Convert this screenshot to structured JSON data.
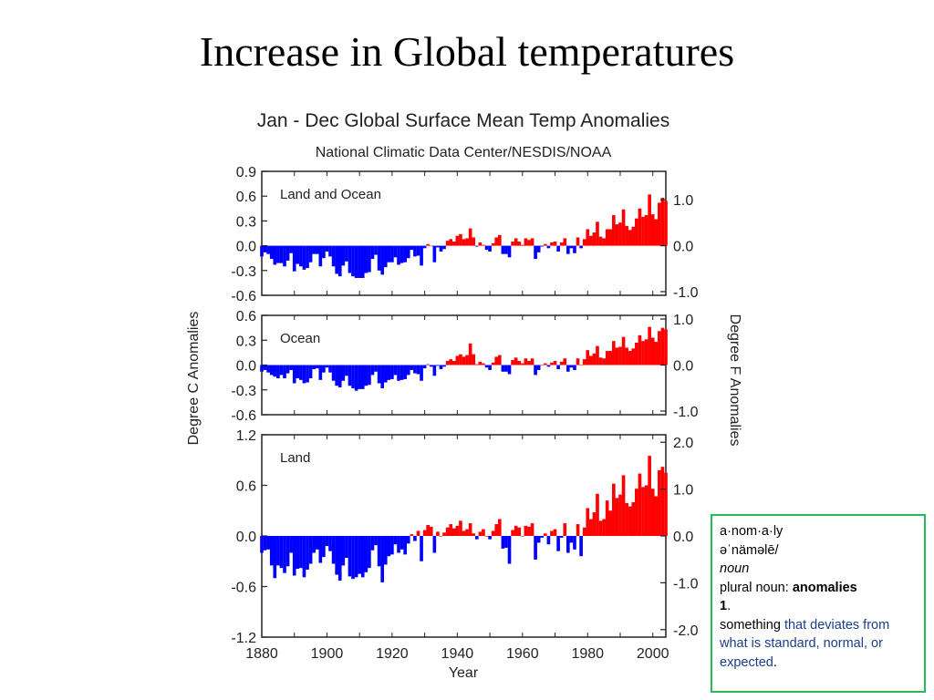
{
  "slide": {
    "title": "Increase in Global temperatures"
  },
  "definition": {
    "word": "a·nom·a·ly",
    "pronunciation": "əˈnäməlē/",
    "part_of_speech": "noun",
    "plural_prefix": "plural noun: ",
    "plural_word": "anomalies",
    "sense_number": "1",
    "sense_punct": ".",
    "meaning_start": "something ",
    "meaning_link": "that deviates from what is standard, normal, or expected",
    "meaning_end": "."
  },
  "colors": {
    "positive": "#ff0000",
    "negative": "#0000ff",
    "frame": "#222222",
    "definition_border": "#22bb55",
    "definition_link": "#1a3d8c"
  },
  "chart_data": {
    "type": "bar",
    "title": "Jan - Dec Global Surface Mean Temp Anomalies",
    "subtitle": "National Climatic Data Center/NESDIS/NOAA",
    "xlabel": "Year",
    "ylabel_left": "Degree C Anomalies",
    "ylabel_right": "Degree F Anomalies",
    "xlim": [
      1880,
      2004
    ],
    "xticks": [
      "1880",
      "1900",
      "1920",
      "1940",
      "1960",
      "1980",
      "2000"
    ],
    "panels": [
      {
        "name": "Land and Ocean",
        "ylim": [
          -0.6,
          0.9
        ],
        "yticks_left": [
          "0.9",
          "0.6",
          "0.3",
          "0.0",
          "-0.3",
          "-0.6"
        ],
        "yticks_right": [
          "1.0",
          "0.0",
          "-1.0"
        ],
        "years_start": 1880,
        "values": [
          -0.13,
          -0.08,
          -0.1,
          -0.16,
          -0.23,
          -0.21,
          -0.21,
          -0.25,
          -0.18,
          -0.09,
          -0.31,
          -0.22,
          -0.25,
          -0.29,
          -0.27,
          -0.2,
          -0.1,
          -0.1,
          -0.25,
          -0.15,
          -0.07,
          -0.13,
          -0.25,
          -0.34,
          -0.37,
          -0.24,
          -0.19,
          -0.33,
          -0.37,
          -0.39,
          -0.39,
          -0.39,
          -0.33,
          -0.32,
          -0.16,
          -0.11,
          -0.3,
          -0.35,
          -0.26,
          -0.2,
          -0.2,
          -0.14,
          -0.23,
          -0.21,
          -0.2,
          -0.15,
          -0.05,
          -0.13,
          -0.12,
          -0.24,
          -0.03,
          0.02,
          0.0,
          -0.2,
          -0.02,
          -0.07,
          -0.04,
          0.06,
          0.08,
          0.05,
          0.12,
          0.14,
          0.08,
          0.09,
          0.21,
          0.1,
          -0.01,
          0.04,
          0.01,
          -0.05,
          -0.07,
          0.03,
          0.1,
          0.13,
          -0.1,
          -0.1,
          -0.14,
          0.05,
          0.09,
          0.05,
          0.01,
          0.09,
          0.07,
          0.09,
          -0.16,
          -0.08,
          -0.01,
          0.02,
          -0.03,
          0.04,
          0.05,
          -0.07,
          0.04,
          0.09,
          -0.1,
          -0.03,
          -0.09,
          0.1,
          -0.03,
          0.08,
          0.2,
          0.12,
          0.16,
          0.29,
          0.11,
          0.09,
          0.2,
          0.2,
          0.37,
          0.26,
          0.28,
          0.44,
          0.24,
          0.19,
          0.23,
          0.33,
          0.45,
          0.35,
          0.37,
          0.62,
          0.38,
          0.32,
          0.52,
          0.58,
          0.54
        ]
      },
      {
        "name": "Ocean",
        "ylim": [
          -0.6,
          0.6
        ],
        "yticks_left": [
          "0.6",
          "0.3",
          "0.0",
          "-0.3",
          "-0.6"
        ],
        "yticks_right": [
          "1.0",
          "0.0",
          "-1.0"
        ],
        "years_start": 1880,
        "values": [
          -0.08,
          -0.06,
          -0.09,
          -0.12,
          -0.14,
          -0.16,
          -0.12,
          -0.16,
          -0.1,
          -0.06,
          -0.22,
          -0.16,
          -0.18,
          -0.22,
          -0.21,
          -0.16,
          -0.05,
          -0.04,
          -0.18,
          -0.09,
          -0.03,
          -0.09,
          -0.19,
          -0.25,
          -0.27,
          -0.19,
          -0.13,
          -0.25,
          -0.28,
          -0.31,
          -0.29,
          -0.29,
          -0.25,
          -0.24,
          -0.12,
          -0.08,
          -0.22,
          -0.28,
          -0.21,
          -0.18,
          -0.17,
          -0.12,
          -0.19,
          -0.18,
          -0.17,
          -0.12,
          -0.06,
          -0.1,
          -0.11,
          -0.19,
          -0.04,
          0.01,
          -0.02,
          -0.13,
          -0.01,
          -0.05,
          -0.02,
          0.05,
          0.07,
          0.05,
          0.11,
          0.13,
          0.1,
          0.12,
          0.26,
          0.13,
          0.01,
          0.04,
          0.02,
          -0.03,
          -0.06,
          0.03,
          0.1,
          0.12,
          -0.08,
          -0.08,
          -0.11,
          0.06,
          0.09,
          0.05,
          0.02,
          0.08,
          0.05,
          0.08,
          -0.12,
          -0.06,
          0.0,
          0.02,
          -0.02,
          0.03,
          0.05,
          -0.05,
          0.04,
          0.08,
          -0.08,
          -0.03,
          -0.06,
          0.08,
          0.0,
          0.07,
          0.18,
          0.11,
          0.14,
          0.23,
          0.09,
          0.08,
          0.17,
          0.17,
          0.29,
          0.21,
          0.22,
          0.34,
          0.21,
          0.17,
          0.2,
          0.27,
          0.36,
          0.29,
          0.31,
          0.46,
          0.33,
          0.28,
          0.41,
          0.45,
          0.43
        ]
      },
      {
        "name": "Land",
        "ylim": [
          -1.2,
          1.2
        ],
        "yticks_left": [
          "1.2",
          "0.6",
          "0.0",
          "-0.6",
          "-1.2"
        ],
        "yticks_right": [
          "2.0",
          "1.0",
          "0.0",
          "-1.0",
          "-2.0"
        ],
        "years_start": 1880,
        "values": [
          -0.2,
          -0.17,
          -0.16,
          -0.35,
          -0.5,
          -0.35,
          -0.38,
          -0.44,
          -0.36,
          -0.2,
          -0.47,
          -0.39,
          -0.38,
          -0.49,
          -0.4,
          -0.33,
          -0.2,
          -0.16,
          -0.32,
          -0.25,
          -0.12,
          -0.18,
          -0.33,
          -0.46,
          -0.53,
          -0.35,
          -0.26,
          -0.48,
          -0.51,
          -0.49,
          -0.45,
          -0.49,
          -0.43,
          -0.38,
          -0.17,
          -0.11,
          -0.36,
          -0.55,
          -0.34,
          -0.24,
          -0.22,
          -0.1,
          -0.2,
          -0.16,
          -0.22,
          -0.09,
          0.02,
          -0.06,
          0.06,
          -0.3,
          0.07,
          0.13,
          0.11,
          -0.2,
          0.05,
          0.0,
          0.04,
          0.1,
          0.14,
          0.09,
          0.12,
          0.18,
          0.06,
          0.08,
          0.15,
          0.03,
          -0.04,
          0.05,
          0.08,
          0.0,
          -0.04,
          0.06,
          0.14,
          0.2,
          -0.15,
          -0.14,
          -0.33,
          0.07,
          0.12,
          0.1,
          0.0,
          0.12,
          0.11,
          0.15,
          -0.28,
          -0.08,
          -0.02,
          0.03,
          -0.1,
          0.06,
          0.08,
          -0.18,
          -0.02,
          0.15,
          -0.2,
          -0.08,
          -0.16,
          0.14,
          -0.24,
          0.1,
          0.33,
          0.2,
          0.28,
          0.5,
          0.18,
          0.2,
          0.42,
          0.3,
          0.62,
          0.45,
          0.49,
          0.72,
          0.39,
          0.35,
          0.4,
          0.56,
          0.74,
          0.58,
          0.6,
          0.95,
          0.56,
          0.47,
          0.78,
          0.82,
          0.75
        ]
      }
    ]
  }
}
